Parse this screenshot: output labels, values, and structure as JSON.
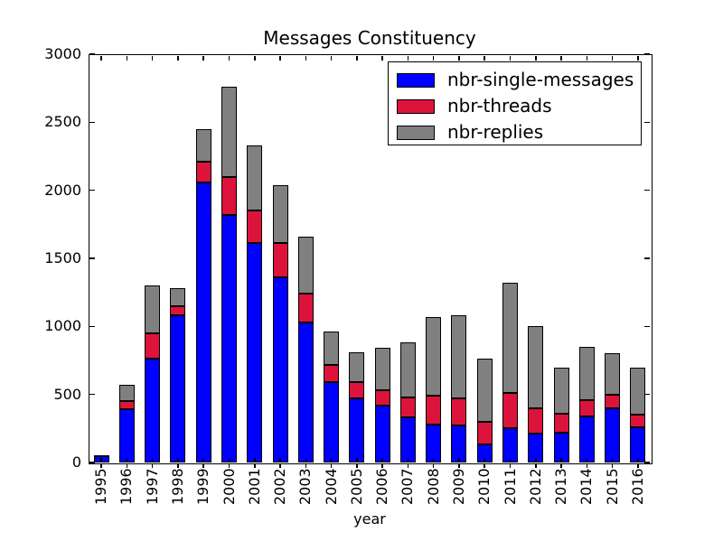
{
  "chart_data": {
    "type": "bar",
    "stacked": true,
    "title": "Messages Constituency",
    "xlabel": "year",
    "ylabel": "",
    "ylim": [
      0,
      3000
    ],
    "yticks": [
      0,
      500,
      1000,
      1500,
      2000,
      2500,
      3000
    ],
    "grid": false,
    "legend_position": "upper right",
    "bar_edge_color": "#000000",
    "categories": [
      "1995",
      "1996",
      "1997",
      "1998",
      "1999",
      "2000",
      "2001",
      "2002",
      "2003",
      "2004",
      "2005",
      "2006",
      "2007",
      "2008",
      "2009",
      "2010",
      "2011",
      "2012",
      "2013",
      "2014",
      "2015",
      "2016"
    ],
    "series": [
      {
        "name": "nbr-single-messages",
        "color": "#0000ff",
        "values": [
          45,
          390,
          760,
          1080,
          2060,
          1820,
          1610,
          1360,
          1030,
          590,
          470,
          420,
          330,
          280,
          270,
          130,
          250,
          210,
          220,
          340,
          395,
          260
        ]
      },
      {
        "name": "nbr-threads",
        "color": "#dc143c",
        "values": [
          5,
          60,
          190,
          70,
          150,
          280,
          240,
          250,
          210,
          125,
          120,
          110,
          150,
          210,
          200,
          170,
          260,
          190,
          140,
          120,
          105,
          90
        ]
      },
      {
        "name": "nbr-replies",
        "color": "#808080",
        "values": [
          5,
          120,
          350,
          130,
          240,
          660,
          480,
          430,
          420,
          245,
          220,
          310,
          400,
          580,
          610,
          460,
          810,
          600,
          340,
          390,
          300,
          350
        ]
      }
    ]
  }
}
